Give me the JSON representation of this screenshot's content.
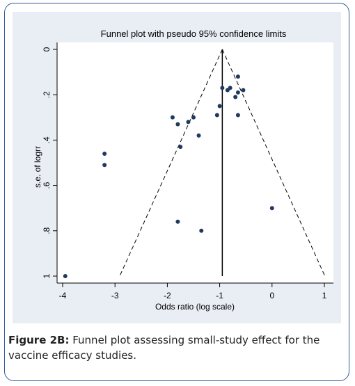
{
  "chart_data": {
    "type": "scatter",
    "title": "Funnel plot with pseudo 95% confidence limits",
    "xlabel": "Odds ratio (log scale)",
    "ylabel": "s.e. of logrr",
    "xlim": [
      -4,
      1
    ],
    "ylim": [
      0,
      1
    ],
    "y_reversed": true,
    "x_ticks": [
      -4,
      -3,
      -2,
      -1,
      0,
      1
    ],
    "x_tick_labels": [
      "-4",
      "-3",
      "-2",
      "-1",
      "0",
      "1"
    ],
    "y_ticks": [
      0,
      0.2,
      0.4,
      0.6,
      0.8,
      1
    ],
    "y_tick_labels": [
      "0",
      ".2",
      ".4",
      ".6",
      ".8",
      "1"
    ],
    "pooled_estimate": -0.95,
    "grid": false,
    "point_color": "#1f3a5f",
    "points": [
      {
        "x": -0.65,
        "y": 0.12
      },
      {
        "x": -0.95,
        "y": 0.17
      },
      {
        "x": -0.85,
        "y": 0.18
      },
      {
        "x": -0.8,
        "y": 0.17
      },
      {
        "x": -0.55,
        "y": 0.18
      },
      {
        "x": -0.65,
        "y": 0.19
      },
      {
        "x": -0.7,
        "y": 0.21
      },
      {
        "x": -1.0,
        "y": 0.25
      },
      {
        "x": -1.05,
        "y": 0.29
      },
      {
        "x": -0.65,
        "y": 0.29
      },
      {
        "x": -1.9,
        "y": 0.3
      },
      {
        "x": -1.5,
        "y": 0.3
      },
      {
        "x": -1.6,
        "y": 0.32
      },
      {
        "x": -1.8,
        "y": 0.33
      },
      {
        "x": -1.4,
        "y": 0.38
      },
      {
        "x": -1.75,
        "y": 0.43
      },
      {
        "x": -3.2,
        "y": 0.46
      },
      {
        "x": -3.2,
        "y": 0.51
      },
      {
        "x": 0.0,
        "y": 0.7
      },
      {
        "x": -1.8,
        "y": 0.76
      },
      {
        "x": -1.35,
        "y": 0.8
      },
      {
        "x": -3.95,
        "y": 1.0
      }
    ]
  },
  "caption": {
    "label": "Figure 2B:",
    "text": " Funnel plot assessing small-study effect for the vaccine efficacy studies."
  }
}
